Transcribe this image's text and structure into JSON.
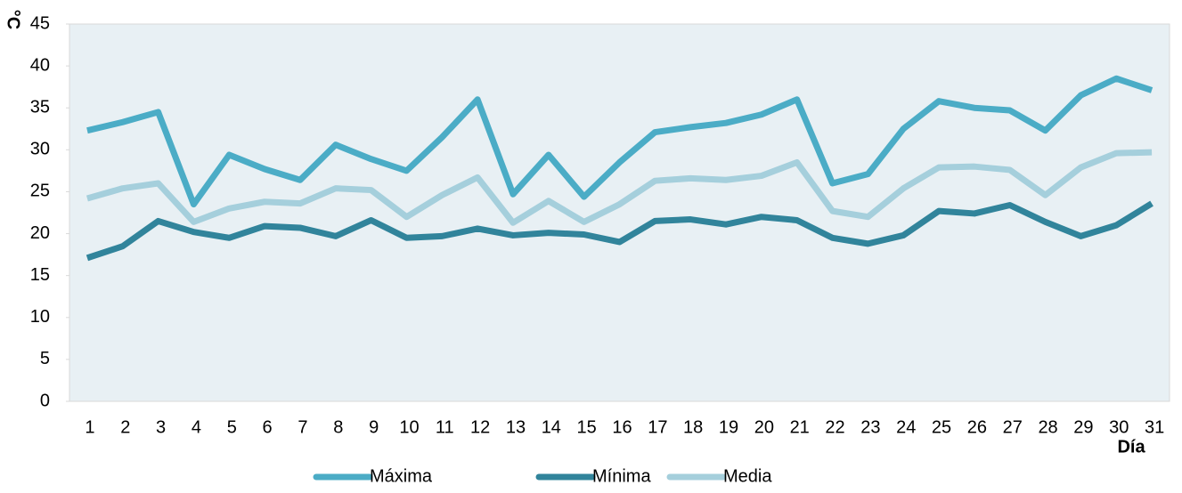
{
  "chart_data": {
    "type": "line",
    "y_label": "°C",
    "x_label": "Día",
    "categories": [
      "1",
      "2",
      "3",
      "4",
      "5",
      "6",
      "7",
      "8",
      "9",
      "10",
      "11",
      "12",
      "13",
      "14",
      "15",
      "16",
      "17",
      "18",
      "19",
      "20",
      "21",
      "22",
      "23",
      "24",
      "25",
      "26",
      "27",
      "28",
      "29",
      "30",
      "31"
    ],
    "series": [
      {
        "name": "Máxima",
        "color": "#4bacc6",
        "values": [
          32.3,
          33.3,
          34.5,
          23.5,
          29.4,
          27.7,
          26.4,
          30.6,
          28.9,
          27.5,
          31.5,
          36.0,
          24.7,
          29.4,
          24.4,
          28.5,
          32.1,
          32.7,
          33.2,
          34.2,
          36.0,
          26.0,
          27.1,
          32.5,
          35.8,
          35.0,
          34.7,
          32.3,
          36.5,
          38.5,
          37.1
        ]
      },
      {
        "name": "Mínima",
        "color": "#31849b",
        "values": [
          17.1,
          18.5,
          21.5,
          20.2,
          19.5,
          20.9,
          20.7,
          19.7,
          21.6,
          19.5,
          19.7,
          20.6,
          19.8,
          20.1,
          19.9,
          19.0,
          21.5,
          21.7,
          21.1,
          22.0,
          21.6,
          19.5,
          18.8,
          19.8,
          22.7,
          22.4,
          23.4,
          21.4,
          19.7,
          21.0,
          23.6
        ]
      },
      {
        "name": "Media",
        "color": "#a5cfdc",
        "values": [
          24.2,
          25.4,
          26.0,
          21.4,
          23.0,
          23.8,
          23.6,
          25.4,
          25.2,
          22.0,
          24.6,
          26.7,
          21.3,
          23.9,
          21.4,
          23.5,
          26.3,
          26.6,
          26.4,
          26.9,
          28.5,
          22.7,
          22.0,
          25.4,
          27.9,
          28.0,
          27.6,
          24.6,
          27.9,
          29.6,
          29.7
        ]
      }
    ],
    "ylim": [
      0,
      45
    ],
    "yticks": [
      0,
      5,
      10,
      15,
      20,
      25,
      30,
      35,
      40,
      45
    ],
    "background": "#e8f0f4",
    "legend": "bottom"
  }
}
